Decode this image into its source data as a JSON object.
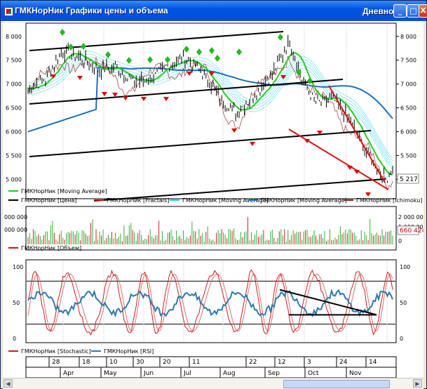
{
  "window": {
    "title": "ГМКНорНик Графики цены и объема",
    "mode_label": "Дневной",
    "minimize_glyph": "_",
    "maximize_glyph": "□",
    "close_glyph": "X"
  },
  "colors": {
    "price": "#000000",
    "fractal_up": "#22bb22",
    "fractal_down": "#dd0000",
    "ma_fast": "#22cc22",
    "ma_mid": "#33ccdd",
    "ma_slow": "#1a70c0",
    "ichimoku": "#8b2020",
    "volume_bar": "#33aa33",
    "stoch": "#cc2020",
    "rsi": "#2a7ab0",
    "trend": "#000000",
    "trend_red": "#dd1010"
  },
  "price_panel": {
    "y_ticks": [
      "8 000",
      "7 500",
      "7 000",
      "6 500",
      "6 000",
      "5 500",
      "5 000"
    ],
    "last_price_label": "5 217",
    "legend": [
      {
        "icon": "line-green",
        "text": "ГМКНорНик [Moving Average]"
      },
      {
        "icon": "line-black",
        "text": "ГМКНорНик [Цена]"
      },
      {
        "icon": "line-red",
        "text": "ГМКНорНик [Fractals]"
      },
      {
        "icon": "line-cyan",
        "text": "ГМКНорНик [Moving Average]"
      },
      {
        "icon": "line-blue",
        "text": "ГМКНорНик [Moving Average]"
      },
      {
        "icon": "line-brown",
        "text": "ГМКНорНик [Ichimoku]"
      }
    ]
  },
  "volume_panel": {
    "left_ticks": [
      "000 000",
      "000 000"
    ],
    "right_ticks": [
      "2 000 000",
      "1 000 000",
      "0"
    ],
    "last_volume_label": "660 424",
    "legend": [
      {
        "icon": "line-red",
        "text": "ГМКНорНик [Объем]"
      }
    ]
  },
  "osc_panel": {
    "left_ticks": [
      "100",
      "50",
      "0"
    ],
    "right_ticks": [
      "100",
      "50",
      "0"
    ],
    "legend": [
      {
        "icon": "line-red",
        "text": "ГМКНорНик [Stochastic]"
      },
      {
        "icon": "line-blue",
        "text": "ГМКНорНик [RSI]"
      }
    ]
  },
  "date_axis": {
    "days": [
      "28",
      "18",
      "10",
      "30",
      "20",
      "11",
      "22",
      "12",
      "3",
      "24",
      "14"
    ],
    "months": [
      "Apr",
      "May",
      "Jun",
      "Jul",
      "Aug",
      "Sep",
      "Oct",
      "Nov"
    ]
  }
}
